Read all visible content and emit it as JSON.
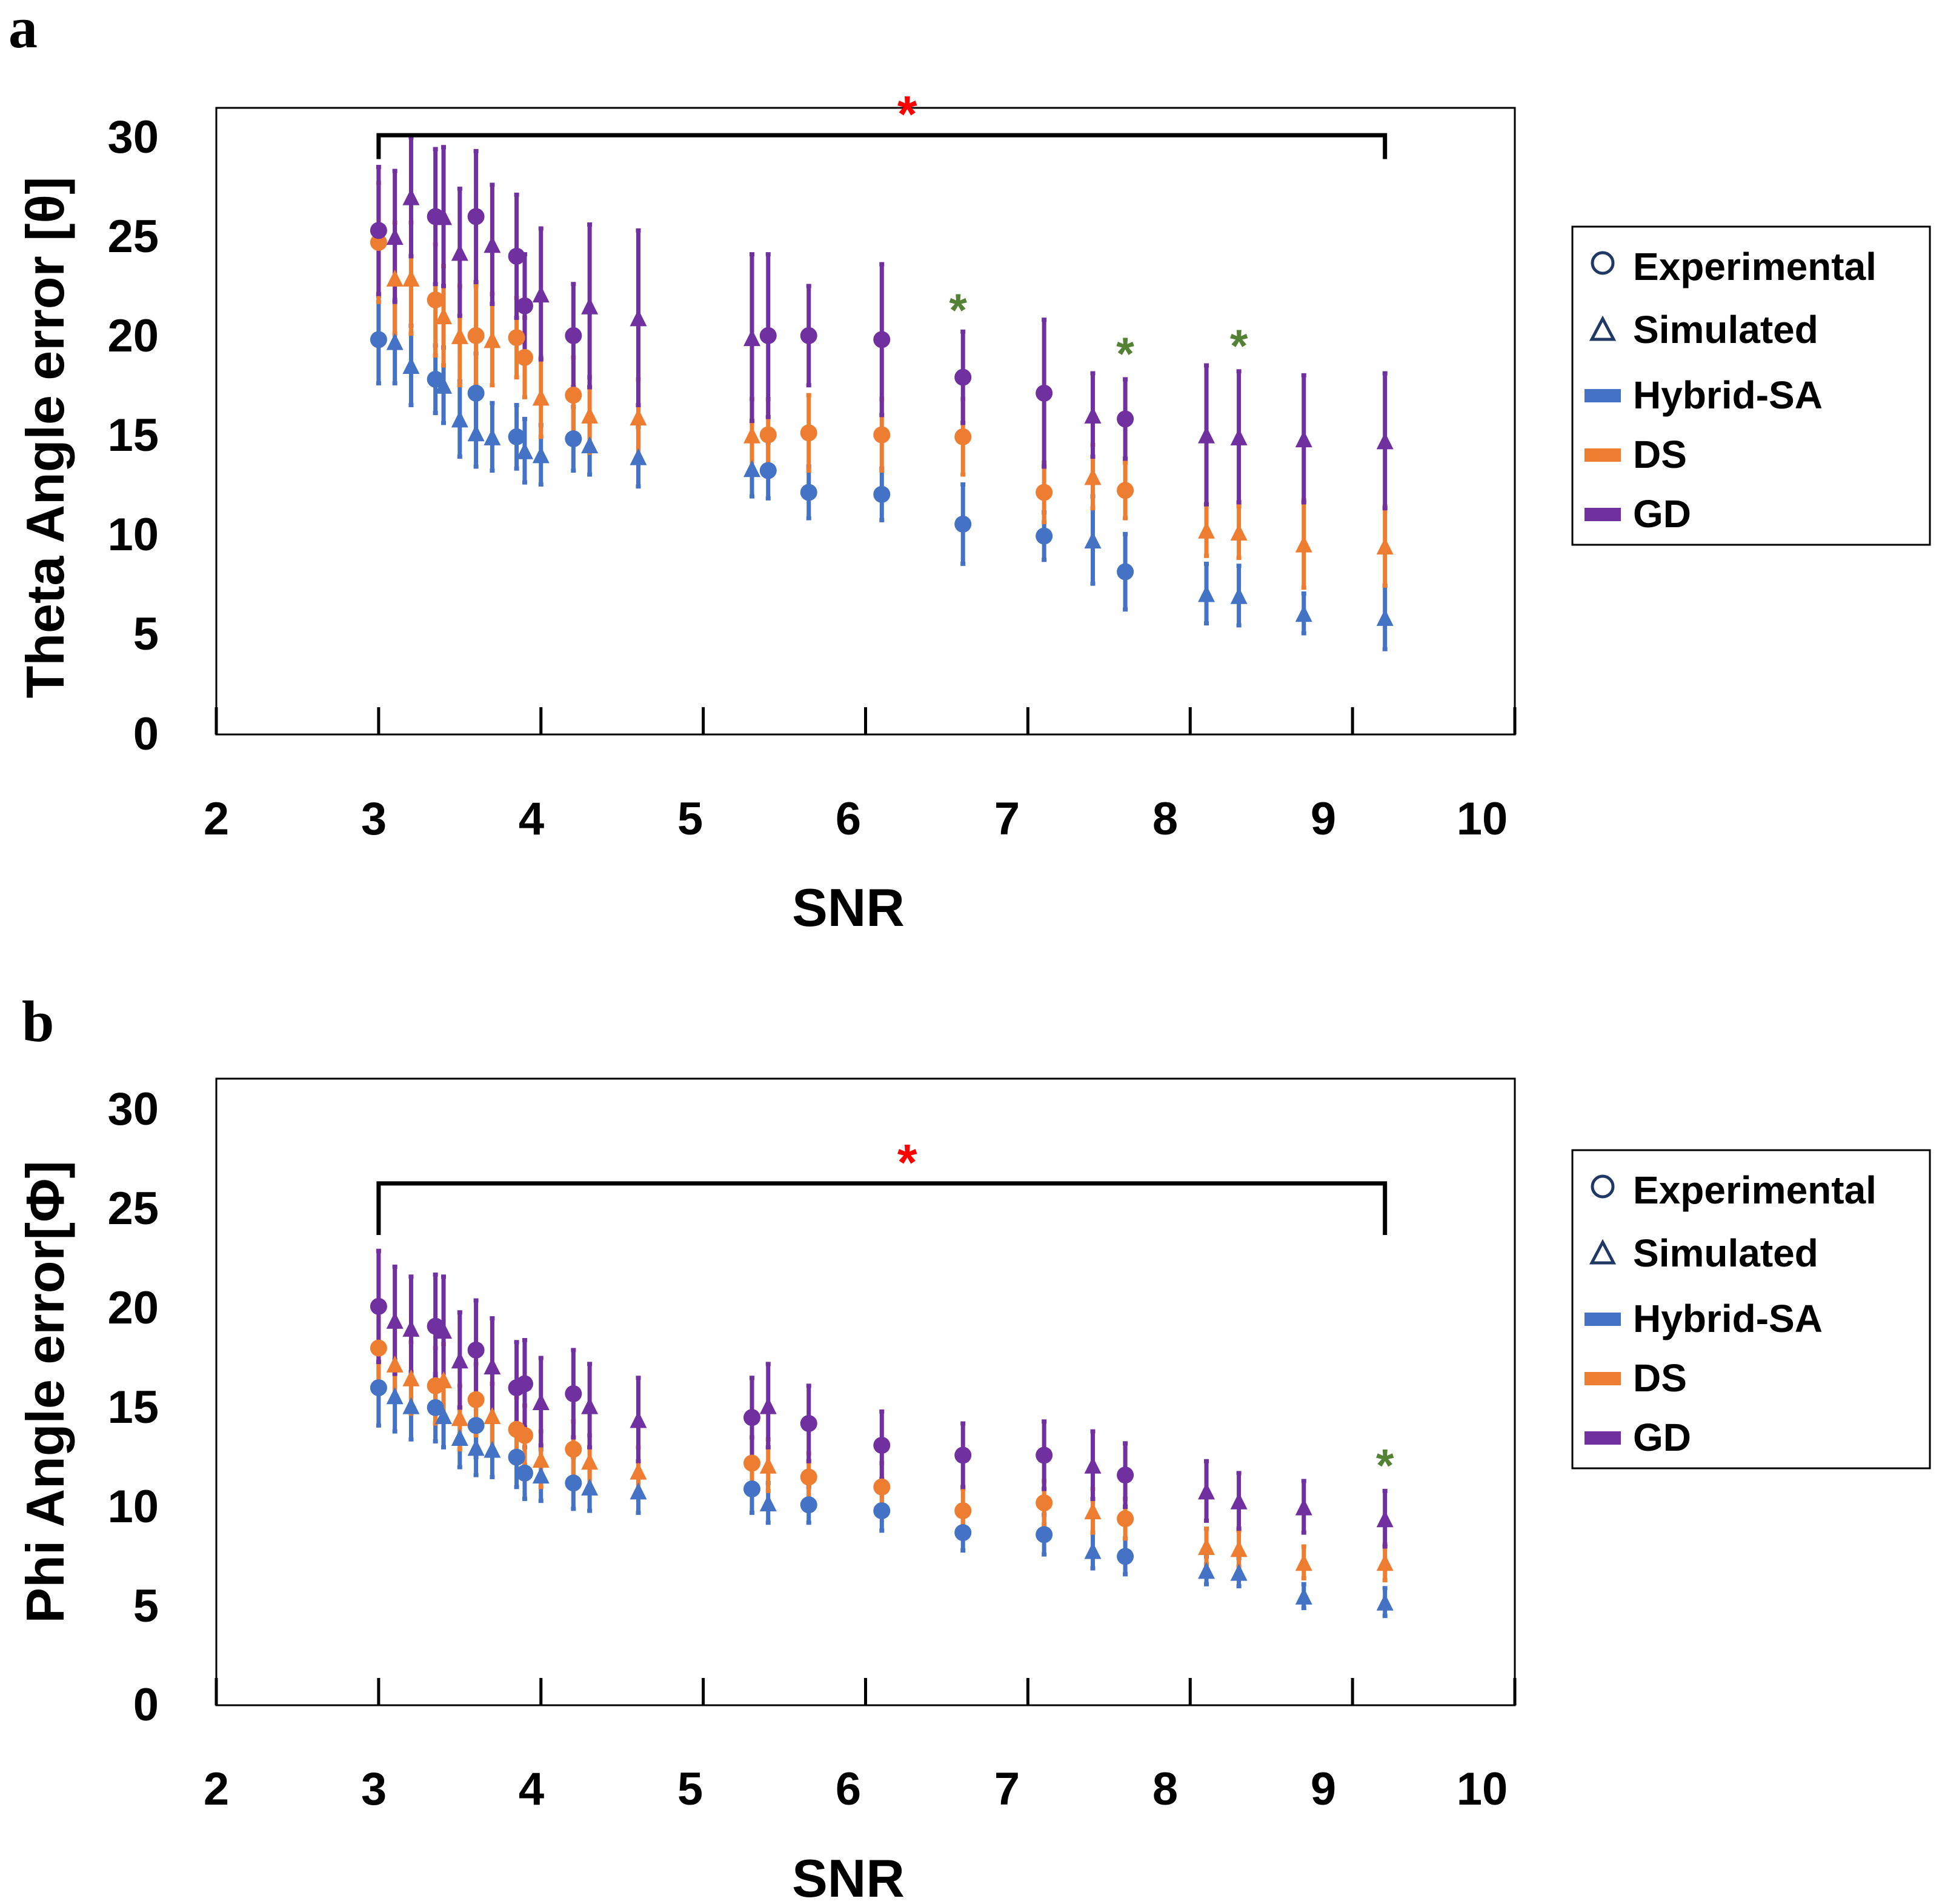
{
  "colors": {
    "hybrid": "#4472C4",
    "ds": "#ED7D31",
    "gd": "#7030A0",
    "sig_red": "#FF0000",
    "sig_green": "#548235",
    "legend_marker": "#203864"
  },
  "legend": {
    "experimental": "Experimental",
    "simulated": "Simulated",
    "hybrid": "Hybrid-SA",
    "ds": "DS",
    "gd": "GD"
  },
  "chart_data": [
    {
      "panel": "a",
      "type": "scatter",
      "title": "",
      "xlabel": "SNR",
      "ylabel": "Theta Angle error [θ]",
      "xlim": [
        2,
        10
      ],
      "ylim": [
        0,
        30
      ],
      "xticks": [
        "2",
        "3",
        "4",
        "5",
        "6",
        "7",
        "8",
        "9",
        "10"
      ],
      "yticks": [
        "0",
        "5",
        "10",
        "15",
        "20",
        "25",
        "30"
      ],
      "legend": [
        "Experimental",
        "Simulated",
        "Hybrid-SA",
        "DS",
        "GD"
      ],
      "bracket": {
        "x1": 3.0,
        "x2": 9.2,
        "y": 30.2,
        "y_end": 29.0,
        "label": "*"
      },
      "green_stars": [
        {
          "x": 6.57,
          "y": 21.5
        },
        {
          "x": 7.6,
          "y": 19.3
        },
        {
          "x": 8.3,
          "y": 19.7
        }
      ],
      "series": [
        {
          "name": "Hybrid-SA",
          "kind": "Experimental",
          "points": [
            {
              "x": 3.0,
              "y": 19.9,
              "err": 2.2
            },
            {
              "x": 3.35,
              "y": 17.9,
              "err": 1.7
            },
            {
              "x": 3.6,
              "y": 17.2,
              "err": 2.0
            },
            {
              "x": 3.85,
              "y": 15.0,
              "err": 1.6
            },
            {
              "x": 4.2,
              "y": 14.9,
              "err": 1.6
            },
            {
              "x": 5.4,
              "y": 13.3,
              "err": 1.4
            },
            {
              "x": 5.65,
              "y": 12.2,
              "err": 1.3
            },
            {
              "x": 6.1,
              "y": 12.1,
              "err": 1.3
            },
            {
              "x": 6.6,
              "y": 10.6,
              "err": 2.0
            },
            {
              "x": 7.1,
              "y": 10.0,
              "err": 1.2
            },
            {
              "x": 7.6,
              "y": 8.2,
              "err": 1.9
            }
          ]
        },
        {
          "name": "Hybrid-SA",
          "kind": "Simulated",
          "points": [
            {
              "x": 3.1,
              "y": 19.8,
              "err": 2.1
            },
            {
              "x": 3.2,
              "y": 18.6,
              "err": 2.0
            },
            {
              "x": 3.4,
              "y": 17.6,
              "err": 1.9
            },
            {
              "x": 3.5,
              "y": 15.9,
              "err": 1.9
            },
            {
              "x": 3.6,
              "y": 15.2,
              "err": 1.7
            },
            {
              "x": 3.7,
              "y": 15.0,
              "err": 1.7
            },
            {
              "x": 3.9,
              "y": 14.3,
              "err": 1.6
            },
            {
              "x": 4.0,
              "y": 14.1,
              "err": 1.5
            },
            {
              "x": 4.3,
              "y": 14.6,
              "err": 1.5
            },
            {
              "x": 4.6,
              "y": 14.0,
              "err": 1.5
            },
            {
              "x": 5.3,
              "y": 13.4,
              "err": 1.4
            },
            {
              "x": 7.4,
              "y": 9.8,
              "err": 2.2
            },
            {
              "x": 8.1,
              "y": 7.1,
              "err": 1.5
            },
            {
              "x": 8.3,
              "y": 7.0,
              "err": 1.5
            },
            {
              "x": 8.7,
              "y": 6.1,
              "err": 1.0
            },
            {
              "x": 9.2,
              "y": 5.9,
              "err": 1.6
            }
          ]
        },
        {
          "name": "DS",
          "kind": "Experimental",
          "points": [
            {
              "x": 3.0,
              "y": 24.8,
              "err": 3.0
            },
            {
              "x": 3.35,
              "y": 21.9,
              "err": 2.8
            },
            {
              "x": 3.6,
              "y": 20.1,
              "err": 2.5
            },
            {
              "x": 3.85,
              "y": 20.0,
              "err": 2.0
            },
            {
              "x": 3.9,
              "y": 19.0,
              "err": 2.0
            },
            {
              "x": 4.2,
              "y": 17.1,
              "err": 1.9
            },
            {
              "x": 5.4,
              "y": 15.1,
              "err": 1.8
            },
            {
              "x": 5.65,
              "y": 15.2,
              "err": 1.9
            },
            {
              "x": 6.1,
              "y": 15.1,
              "err": 1.8
            },
            {
              "x": 6.6,
              "y": 15.0,
              "err": 1.9
            },
            {
              "x": 7.1,
              "y": 12.2,
              "err": 1.5
            },
            {
              "x": 7.6,
              "y": 12.3,
              "err": 1.4
            }
          ]
        },
        {
          "name": "DS",
          "kind": "Simulated",
          "points": [
            {
              "x": 3.1,
              "y": 23.0,
              "err": 2.8
            },
            {
              "x": 3.2,
              "y": 23.0,
              "err": 2.8
            },
            {
              "x": 3.4,
              "y": 21.1,
              "err": 2.5
            },
            {
              "x": 3.5,
              "y": 20.1,
              "err": 2.5
            },
            {
              "x": 3.7,
              "y": 19.9,
              "err": 2.3
            },
            {
              "x": 4.0,
              "y": 17.0,
              "err": 2.0
            },
            {
              "x": 4.3,
              "y": 16.1,
              "err": 1.9
            },
            {
              "x": 4.6,
              "y": 16.0,
              "err": 1.9
            },
            {
              "x": 5.3,
              "y": 15.1,
              "err": 1.8
            },
            {
              "x": 7.4,
              "y": 13.0,
              "err": 1.6
            },
            {
              "x": 8.1,
              "y": 10.3,
              "err": 1.3
            },
            {
              "x": 8.3,
              "y": 10.2,
              "err": 1.3
            },
            {
              "x": 8.7,
              "y": 9.6,
              "err": 2.2
            },
            {
              "x": 9.2,
              "y": 9.5,
              "err": 2.0
            }
          ]
        },
        {
          "name": "GD",
          "kind": "Experimental",
          "points": [
            {
              "x": 3.0,
              "y": 25.4,
              "err": 3.2
            },
            {
              "x": 3.35,
              "y": 26.1,
              "err": 3.4
            },
            {
              "x": 3.6,
              "y": 26.1,
              "err": 3.3
            },
            {
              "x": 3.85,
              "y": 24.1,
              "err": 3.1
            },
            {
              "x": 3.9,
              "y": 21.6,
              "err": 2.6
            },
            {
              "x": 4.2,
              "y": 20.1,
              "err": 2.6
            },
            {
              "x": 5.4,
              "y": 20.1,
              "err": 4.1
            },
            {
              "x": 5.65,
              "y": 20.1,
              "err": 2.5
            },
            {
              "x": 6.1,
              "y": 19.9,
              "err": 3.8
            },
            {
              "x": 6.6,
              "y": 18.0,
              "err": 2.3
            },
            {
              "x": 7.1,
              "y": 17.2,
              "err": 3.7
            },
            {
              "x": 7.6,
              "y": 15.9,
              "err": 2.0
            }
          ]
        },
        {
          "name": "GD",
          "kind": "Simulated",
          "points": [
            {
              "x": 3.1,
              "y": 25.1,
              "err": 3.3
            },
            {
              "x": 3.2,
              "y": 27.1,
              "err": 3.0
            },
            {
              "x": 3.4,
              "y": 26.1,
              "err": 3.5
            },
            {
              "x": 3.5,
              "y": 24.3,
              "err": 3.2
            },
            {
              "x": 3.7,
              "y": 24.7,
              "err": 3.0
            },
            {
              "x": 4.0,
              "y": 22.2,
              "err": 3.3
            },
            {
              "x": 4.3,
              "y": 21.6,
              "err": 4.1
            },
            {
              "x": 4.6,
              "y": 21.0,
              "err": 4.4
            },
            {
              "x": 5.3,
              "y": 20.0,
              "err": 4.2
            },
            {
              "x": 7.4,
              "y": 16.1,
              "err": 2.1
            },
            {
              "x": 8.1,
              "y": 15.1,
              "err": 3.5
            },
            {
              "x": 8.3,
              "y": 15.0,
              "err": 3.3
            },
            {
              "x": 8.7,
              "y": 14.9,
              "err": 3.2
            },
            {
              "x": 9.2,
              "y": 14.8,
              "err": 3.4
            }
          ]
        }
      ]
    },
    {
      "panel": "b",
      "type": "scatter",
      "title": "",
      "xlabel": "SNR",
      "ylabel": "Phi Angle error[Φ]",
      "xlim": [
        2,
        10
      ],
      "ylim": [
        0,
        30
      ],
      "xticks": [
        "2",
        "3",
        "4",
        "5",
        "6",
        "7",
        "8",
        "9",
        "10"
      ],
      "yticks": [
        "0",
        "5",
        "10",
        "15",
        "20",
        "25",
        "30"
      ],
      "legend": [
        "Experimental",
        "Simulated",
        "Hybrid-SA",
        "DS",
        "GD"
      ],
      "bracket": {
        "x1": 3.0,
        "x2": 9.2,
        "y": 26.3,
        "y_end": 23.7,
        "label": "*"
      },
      "green_stars": [
        {
          "x": 9.2,
          "y": 12.2
        }
      ],
      "series": [
        {
          "name": "Hybrid-SA",
          "kind": "Experimental",
          "points": [
            {
              "x": 3.0,
              "y": 16.0,
              "err": 1.9
            },
            {
              "x": 3.35,
              "y": 15.0,
              "err": 1.7
            },
            {
              "x": 3.6,
              "y": 14.1,
              "err": 1.6
            },
            {
              "x": 3.85,
              "y": 12.5,
              "err": 1.5
            },
            {
              "x": 3.9,
              "y": 11.7,
              "err": 1.3
            },
            {
              "x": 4.2,
              "y": 11.2,
              "err": 1.3
            },
            {
              "x": 5.3,
              "y": 10.9,
              "err": 1.2
            },
            {
              "x": 5.65,
              "y": 10.1,
              "err": 0.9
            },
            {
              "x": 6.1,
              "y": 9.8,
              "err": 1.0
            },
            {
              "x": 6.6,
              "y": 8.7,
              "err": 0.9
            },
            {
              "x": 7.1,
              "y": 8.6,
              "err": 1.0
            },
            {
              "x": 7.6,
              "y": 7.5,
              "err": 0.9
            }
          ]
        },
        {
          "name": "Hybrid-SA",
          "kind": "Simulated",
          "points": [
            {
              "x": 3.1,
              "y": 15.6,
              "err": 1.8
            },
            {
              "x": 3.2,
              "y": 15.1,
              "err": 1.7
            },
            {
              "x": 3.4,
              "y": 14.6,
              "err": 1.6
            },
            {
              "x": 3.5,
              "y": 13.5,
              "err": 1.5
            },
            {
              "x": 3.6,
              "y": 13.0,
              "err": 1.4
            },
            {
              "x": 3.7,
              "y": 12.9,
              "err": 1.4
            },
            {
              "x": 4.0,
              "y": 11.6,
              "err": 1.3
            },
            {
              "x": 4.3,
              "y": 11.0,
              "err": 1.2
            },
            {
              "x": 4.6,
              "y": 10.8,
              "err": 1.1
            },
            {
              "x": 5.4,
              "y": 10.2,
              "err": 1.0
            },
            {
              "x": 7.4,
              "y": 7.8,
              "err": 0.9
            },
            {
              "x": 8.1,
              "y": 6.8,
              "err": 0.7
            },
            {
              "x": 8.3,
              "y": 6.7,
              "err": 0.7
            },
            {
              "x": 8.7,
              "y": 5.5,
              "err": 0.6
            },
            {
              "x": 9.2,
              "y": 5.2,
              "err": 0.7
            }
          ]
        },
        {
          "name": "DS",
          "kind": "Experimental",
          "points": [
            {
              "x": 3.0,
              "y": 18.0,
              "err": 2.0
            },
            {
              "x": 3.35,
              "y": 16.1,
              "err": 1.9
            },
            {
              "x": 3.6,
              "y": 15.4,
              "err": 1.8
            },
            {
              "x": 3.85,
              "y": 13.9,
              "err": 1.6
            },
            {
              "x": 3.9,
              "y": 13.6,
              "err": 1.5
            },
            {
              "x": 4.2,
              "y": 12.9,
              "err": 1.4
            },
            {
              "x": 5.3,
              "y": 12.2,
              "err": 1.3
            },
            {
              "x": 5.65,
              "y": 11.5,
              "err": 1.2
            },
            {
              "x": 6.1,
              "y": 11.0,
              "err": 1.2
            },
            {
              "x": 6.6,
              "y": 9.8,
              "err": 1.1
            },
            {
              "x": 7.1,
              "y": 10.2,
              "err": 1.1
            },
            {
              "x": 7.6,
              "y": 9.4,
              "err": 1.0
            }
          ]
        },
        {
          "name": "DS",
          "kind": "Simulated",
          "points": [
            {
              "x": 3.1,
              "y": 17.2,
              "err": 1.9
            },
            {
              "x": 3.2,
              "y": 16.5,
              "err": 1.8
            },
            {
              "x": 3.4,
              "y": 16.4,
              "err": 1.8
            },
            {
              "x": 3.5,
              "y": 14.5,
              "err": 1.6
            },
            {
              "x": 3.7,
              "y": 14.6,
              "err": 1.6
            },
            {
              "x": 4.0,
              "y": 12.4,
              "err": 1.4
            },
            {
              "x": 4.3,
              "y": 12.3,
              "err": 1.3
            },
            {
              "x": 4.6,
              "y": 11.8,
              "err": 1.2
            },
            {
              "x": 5.4,
              "y": 12.1,
              "err": 1.3
            },
            {
              "x": 7.4,
              "y": 9.8,
              "err": 1.1
            },
            {
              "x": 8.1,
              "y": 8.0,
              "err": 0.9
            },
            {
              "x": 8.3,
              "y": 7.9,
              "err": 0.9
            },
            {
              "x": 8.7,
              "y": 7.2,
              "err": 0.8
            },
            {
              "x": 9.2,
              "y": 7.2,
              "err": 0.9
            }
          ]
        },
        {
          "name": "GD",
          "kind": "Experimental",
          "points": [
            {
              "x": 3.0,
              "y": 20.1,
              "err": 2.8
            },
            {
              "x": 3.35,
              "y": 19.1,
              "err": 2.6
            },
            {
              "x": 3.6,
              "y": 17.9,
              "err": 2.5
            },
            {
              "x": 3.85,
              "y": 16.0,
              "err": 2.3
            },
            {
              "x": 3.9,
              "y": 16.2,
              "err": 2.2
            },
            {
              "x": 4.2,
              "y": 15.7,
              "err": 2.2
            },
            {
              "x": 5.3,
              "y": 14.5,
              "err": 2.0
            },
            {
              "x": 5.65,
              "y": 14.2,
              "err": 1.9
            },
            {
              "x": 6.1,
              "y": 13.1,
              "err": 1.7
            },
            {
              "x": 6.6,
              "y": 12.6,
              "err": 1.6
            },
            {
              "x": 7.1,
              "y": 12.6,
              "err": 1.7
            },
            {
              "x": 7.6,
              "y": 11.6,
              "err": 1.6
            }
          ]
        },
        {
          "name": "GD",
          "kind": "Simulated",
          "points": [
            {
              "x": 3.1,
              "y": 19.4,
              "err": 2.7
            },
            {
              "x": 3.2,
              "y": 19.0,
              "err": 2.6
            },
            {
              "x": 3.4,
              "y": 18.9,
              "err": 2.7
            },
            {
              "x": 3.5,
              "y": 17.4,
              "err": 2.4
            },
            {
              "x": 3.7,
              "y": 17.1,
              "err": 2.4
            },
            {
              "x": 4.0,
              "y": 15.3,
              "err": 2.2
            },
            {
              "x": 4.3,
              "y": 15.1,
              "err": 2.1
            },
            {
              "x": 4.6,
              "y": 14.4,
              "err": 2.1
            },
            {
              "x": 5.4,
              "y": 15.1,
              "err": 2.1
            },
            {
              "x": 7.4,
              "y": 12.1,
              "err": 1.7
            },
            {
              "x": 8.1,
              "y": 10.8,
              "err": 1.5
            },
            {
              "x": 8.3,
              "y": 10.3,
              "err": 1.4
            },
            {
              "x": 8.7,
              "y": 10.0,
              "err": 1.3
            },
            {
              "x": 9.2,
              "y": 9.4,
              "err": 1.4
            }
          ]
        }
      ]
    }
  ]
}
